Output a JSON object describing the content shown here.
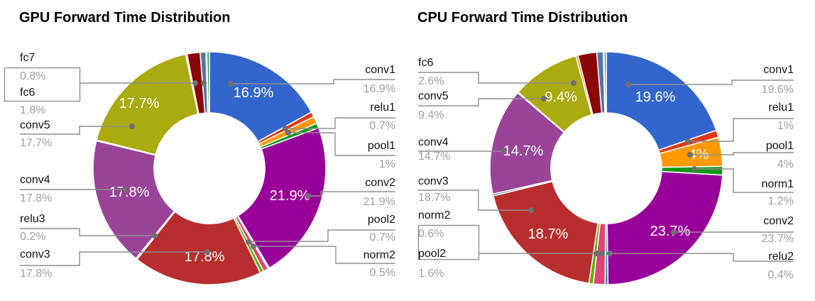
{
  "charts": [
    {
      "title": "GPU Forward Time Distribution",
      "slices": [
        {
          "name": "conv1",
          "value": 16.9,
          "color": "#3366CC",
          "inner": "16.9%"
        },
        {
          "name": "relu1",
          "value": 0.7,
          "color": "#DC3912"
        },
        {
          "name": "pool1",
          "value": 1.0,
          "color": "#FF9900"
        },
        {
          "name": "",
          "value": 0.65,
          "color": "#109618"
        },
        {
          "name": "conv2",
          "value": 21.9,
          "color": "#990099",
          "inner": "21.9%"
        },
        {
          "name": "",
          "value": 0.2,
          "color": "#0099C6"
        },
        {
          "name": "pool2",
          "value": 0.7,
          "color": "#DD4477"
        },
        {
          "name": "norm2",
          "value": 0.5,
          "color": "#66AA00"
        },
        {
          "name": "conv3",
          "value": 17.8,
          "color": "#B82E2E",
          "inner": "17.8%"
        },
        {
          "name": "relu3",
          "value": 0.2,
          "color": "#316395"
        },
        {
          "name": "conv4",
          "value": 17.8,
          "color": "#994499",
          "inner": "17.8%"
        },
        {
          "name": "",
          "value": 0.12,
          "color": "#22AA99"
        },
        {
          "name": "conv5",
          "value": 17.7,
          "color": "#AAAA11",
          "inner": "17.7%"
        },
        {
          "name": "",
          "value": 0.2,
          "color": "#E67300"
        },
        {
          "name": "fc6",
          "value": 1.8,
          "color": "#8B0707"
        },
        {
          "name": "fc7",
          "value": 0.8,
          "color": "#5574A6"
        },
        {
          "name": "",
          "value": 0.12,
          "color": "#3B3EAC"
        },
        {
          "name": "",
          "value": 0.35,
          "color": "#329262"
        }
      ],
      "callouts": [
        {
          "name": "fc7",
          "value": "0.8%"
        },
        {
          "name": "fc6",
          "value": "1.8%"
        },
        {
          "name": "conv5",
          "value": "17.7%"
        },
        {
          "name": "conv4",
          "value": "17.8%"
        },
        {
          "name": "relu3",
          "value": "0.2%"
        },
        {
          "name": "conv3",
          "value": "17.8%"
        },
        {
          "name": "conv1",
          "value": "16.9%"
        },
        {
          "name": "relu1",
          "value": "0.7%"
        },
        {
          "name": "pool1",
          "value": "1%"
        },
        {
          "name": "conv2",
          "value": "21.9%"
        },
        {
          "name": "pool2",
          "value": "0.7%"
        },
        {
          "name": "norm2",
          "value": "0.5%"
        }
      ]
    },
    {
      "title": "CPU Forward Time Distribution",
      "slices": [
        {
          "name": "conv1",
          "value": 19.6,
          "color": "#3366CC",
          "inner": "19.6%"
        },
        {
          "name": "relu1",
          "value": 1.0,
          "color": "#DC3912"
        },
        {
          "name": "pool1",
          "value": 4.0,
          "color": "#FF9900",
          "inner": "4%"
        },
        {
          "name": "norm1",
          "value": 1.2,
          "color": "#109618"
        },
        {
          "name": "conv2",
          "value": 23.7,
          "color": "#990099",
          "inner": "23.7%"
        },
        {
          "name": "relu2",
          "value": 0.4,
          "color": "#0099C6"
        },
        {
          "name": "pool2",
          "value": 1.6,
          "color": "#DD4477"
        },
        {
          "name": "norm2",
          "value": 0.6,
          "color": "#66AA00"
        },
        {
          "name": "conv3",
          "value": 18.7,
          "color": "#B82E2E",
          "inner": "18.7%"
        },
        {
          "name": "",
          "value": 0.25,
          "color": "#316395"
        },
        {
          "name": "conv4",
          "value": 14.7,
          "color": "#994499",
          "inner": "14.7%"
        },
        {
          "name": "",
          "value": 0.1,
          "color": "#22AA99"
        },
        {
          "name": "conv5",
          "value": 9.4,
          "color": "#AAAA11",
          "inner": "9.4%"
        },
        {
          "name": "",
          "value": 0.3,
          "color": "#E67300"
        },
        {
          "name": "fc6",
          "value": 2.6,
          "color": "#8B0707"
        },
        {
          "name": "",
          "value": 0.9,
          "color": "#5574A6"
        },
        {
          "name": "",
          "value": 0.1,
          "color": "#3B3EAC"
        },
        {
          "name": "",
          "value": 0.3,
          "color": "#329262"
        }
      ],
      "callouts": [
        {
          "name": "fc6",
          "value": "2.6%"
        },
        {
          "name": "conv5",
          "value": "9.4%"
        },
        {
          "name": "conv4",
          "value": "14.7%"
        },
        {
          "name": "conv3",
          "value": "18.7%"
        },
        {
          "name": "norm2",
          "value": "0.6%"
        },
        {
          "name": "pool2",
          "value": "1.6%"
        },
        {
          "name": "conv1",
          "value": "19.6%"
        },
        {
          "name": "relu1",
          "value": "1%"
        },
        {
          "name": "pool1",
          "value": "4%"
        },
        {
          "name": "norm1",
          "value": "1.2%"
        },
        {
          "name": "conv2",
          "value": "23.7%"
        },
        {
          "name": "relu2",
          "value": "0.4%"
        }
      ]
    }
  ],
  "chart_data": [
    {
      "type": "pie",
      "subtype": "donut",
      "title": "GPU Forward Time Distribution",
      "unit": "%",
      "pie_hole": 0.48,
      "legend_position": "outside-callouts",
      "labels": [
        "conv1",
        "relu1",
        "pool1",
        "",
        "conv2",
        "",
        "pool2",
        "norm2",
        "conv3",
        "relu3",
        "conv4",
        "",
        "conv5",
        "",
        "fc6",
        "fc7",
        "",
        ""
      ],
      "values": [
        16.9,
        0.7,
        1.0,
        0.65,
        21.9,
        0.2,
        0.7,
        0.5,
        17.8,
        0.2,
        17.8,
        0.12,
        17.7,
        0.2,
        1.8,
        0.8,
        0.12,
        0.35
      ],
      "colors": [
        "#3366CC",
        "#DC3912",
        "#FF9900",
        "#109618",
        "#990099",
        "#0099C6",
        "#DD4477",
        "#66AA00",
        "#B82E2E",
        "#316395",
        "#994499",
        "#22AA99",
        "#AAAA11",
        "#E67300",
        "#8B0707",
        "#5574A6",
        "#3B3EAC",
        "#329262"
      ]
    },
    {
      "type": "pie",
      "subtype": "donut",
      "title": "CPU Forward Time Distribution",
      "unit": "%",
      "pie_hole": 0.48,
      "legend_position": "outside-callouts",
      "labels": [
        "conv1",
        "relu1",
        "pool1",
        "norm1",
        "conv2",
        "relu2",
        "pool2",
        "norm2",
        "conv3",
        "",
        "conv4",
        "",
        "conv5",
        "",
        "fc6",
        "",
        "",
        ""
      ],
      "values": [
        19.6,
        1.0,
        4.0,
        1.2,
        23.7,
        0.4,
        1.6,
        0.6,
        18.7,
        0.25,
        14.7,
        0.1,
        9.4,
        0.3,
        2.6,
        0.9,
        0.1,
        0.3
      ],
      "colors": [
        "#3366CC",
        "#DC3912",
        "#FF9900",
        "#109618",
        "#990099",
        "#0099C6",
        "#DD4477",
        "#66AA00",
        "#B82E2E",
        "#316395",
        "#994499",
        "#22AA99",
        "#AAAA11",
        "#E67300",
        "#8B0707",
        "#5574A6",
        "#3B3EAC",
        "#329262"
      ]
    }
  ]
}
